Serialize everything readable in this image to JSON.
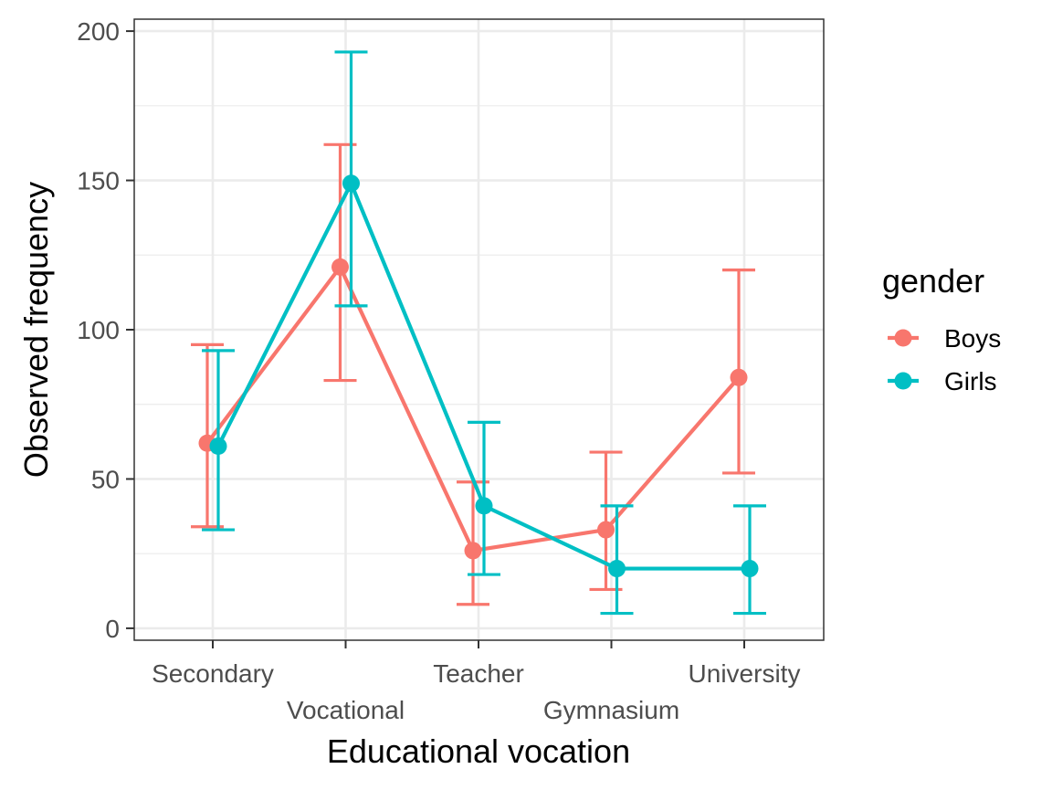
{
  "chart_data": {
    "type": "line",
    "title": "",
    "xlabel": "Educational vocation",
    "ylabel": "Observed frequency",
    "categories": [
      "Secondary",
      "Vocational",
      "Teacher",
      "Gymnasium",
      "University"
    ],
    "ylim": [
      -4,
      204
    ],
    "yticks": [
      0,
      50,
      100,
      150,
      200
    ],
    "y_tick_labels": [
      "0",
      "50",
      "100",
      "150",
      "200"
    ],
    "grid": true,
    "error_bars": true,
    "legend": {
      "title": "gender",
      "position": "right"
    },
    "series": [
      {
        "name": "Boys",
        "color": "#F8766D",
        "values": [
          62,
          121,
          26,
          33,
          84
        ],
        "lower": [
          34,
          83,
          8,
          13,
          52
        ],
        "upper": [
          95,
          162,
          49,
          59,
          120
        ]
      },
      {
        "name": "Girls",
        "color": "#00BFC4",
        "values": [
          61,
          149,
          41,
          20,
          20
        ],
        "lower": [
          33,
          108,
          18,
          5,
          5
        ],
        "upper": [
          93,
          193,
          69,
          41,
          41
        ]
      }
    ]
  }
}
